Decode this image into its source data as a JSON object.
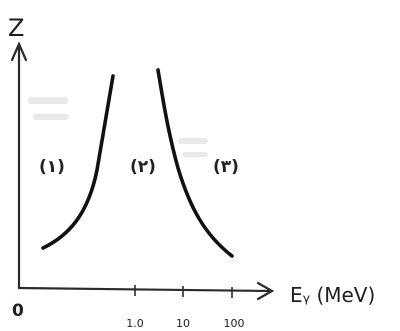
{
  "chart_data": {
    "type": "line",
    "title": "",
    "ylabel": "Z",
    "xlabel": "Eᵧ (MeV)",
    "origin_label": "0",
    "x_scale": "log",
    "x_ticks": [
      "1.0",
      "10",
      "100"
    ],
    "region_labels": [
      "(۱)",
      "(۲)",
      "(۳)"
    ],
    "grid": false,
    "curve_color": "#111111"
  }
}
